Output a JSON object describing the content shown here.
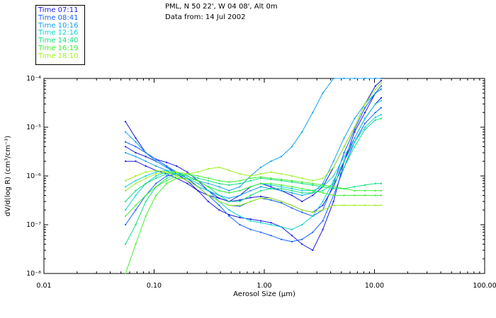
{
  "header": {
    "location": "PML, N 50 22', W 04 08', Alt 0m",
    "date": "Data from: 14 Jul 2002"
  },
  "legend": [
    {
      "label": "Time 07:11",
      "color": "#1a1ae0"
    },
    {
      "label": "Time 08:41",
      "color": "#1560ff"
    },
    {
      "label": "Time 10:16",
      "color": "#12a0f0"
    },
    {
      "label": "Time 12:16",
      "color": "#10d2d2"
    },
    {
      "label": "Time 14:40",
      "color": "#10e080"
    },
    {
      "label": "Time 16:19",
      "color": "#40f030"
    },
    {
      "label": "Time 18:10",
      "color": "#a0f020"
    }
  ],
  "chart_data": {
    "type": "line",
    "xscale": "log",
    "yscale": "log",
    "xlim": [
      0.01,
      100
    ],
    "ylim": [
      1e-08,
      0.0001
    ],
    "xlabel": "Aerosol Size (μm)",
    "ylabel": "dV/d(log R) (cm³/cm⁻³)",
    "xticks": [
      "0.01",
      "0.10",
      "1.00",
      "10.00",
      "100.00"
    ],
    "yticks": [
      "10⁻⁸",
      "10⁻⁷",
      "10⁻⁶",
      "10⁻⁵",
      "10⁻⁴"
    ],
    "x": [
      0.055,
      0.068,
      0.084,
      0.104,
      0.13,
      0.16,
      0.2,
      0.25,
      0.31,
      0.39,
      0.48,
      0.6,
      0.75,
      0.93,
      1.15,
      1.43,
      1.78,
      2.2,
      2.75,
      3.4,
      4.25,
      5.3,
      6.6,
      8.2,
      10.2,
      11.5
    ],
    "series": [
      {
        "name": "Time 07:11",
        "values": [
          [
            1.3e-05,
            6e-06,
            3e-06,
            2.2e-06,
            1.9e-06,
            1.6e-06,
            1.2e-06,
            8e-07,
            5e-07,
            3.5e-07,
            3e-07,
            4e-07,
            6e-07,
            7e-07,
            6e-07,
            5e-07,
            4e-07,
            3e-07,
            4e-07,
            6e-07,
            1.5e-06,
            4e-06,
            1e-05,
            3e-05,
            7e-05,
            9e-05
          ],
          [
            4e-06,
            3e-06,
            2.5e-06,
            2e-06,
            1.5e-06,
            1.1e-06,
            8e-07,
            5e-07,
            3e-07,
            2e-07,
            1.6e-07,
            1.4e-07,
            1.3e-07,
            1.2e-07,
            1.1e-07,
            9e-08,
            6e-08,
            4e-08,
            3e-08,
            8e-08,
            3e-07,
            2e-06,
            8e-06,
            2e-05,
            5e-05,
            6e-05
          ],
          [
            2e-06,
            2e-06,
            1.6e-06,
            1.3e-06,
            1.1e-06,
            9e-07,
            7e-07,
            5e-07,
            4e-07,
            3.5e-07,
            3e-07,
            3.2e-07,
            3.6e-07,
            3.8e-07,
            3.5e-07,
            3e-07,
            2.5e-07,
            2e-07,
            1.8e-07,
            2.5e-07,
            6e-07,
            2e-06,
            6e-06,
            1.5e-05,
            3e-05,
            4e-05
          ]
        ]
      },
      {
        "name": "Time 08:41",
        "values": [
          [
            5e-06,
            4e-06,
            3e-06,
            2.2e-06,
            1.6e-06,
            1.2e-06,
            9e-07,
            6e-07,
            4e-07,
            3e-07,
            2.5e-07,
            2.4e-07,
            3e-07,
            3.5e-07,
            3.2e-07,
            2.8e-07,
            2.2e-07,
            1.8e-07,
            1.5e-07,
            2e-07,
            7e-07,
            3e-06,
            9e-06,
            2.5e-05,
            5e-05,
            7e-05
          ],
          [
            1e-07,
            2e-07,
            4e-07,
            7e-07,
            1e-06,
            1.1e-06,
            9e-07,
            6e-07,
            4e-07,
            2.5e-07,
            1.5e-07,
            1e-07,
            8e-08,
            7e-08,
            6e-08,
            5e-08,
            4.5e-08,
            5e-08,
            7e-08,
            1.2e-07,
            4e-07,
            1.5e-06,
            5e-06,
            1.2e-05,
            2e-05,
            2.5e-05
          ]
        ]
      },
      {
        "name": "Time 10:16",
        "values": [
          [
            3e-06,
            2.5e-06,
            2e-06,
            1.6e-06,
            1.3e-06,
            1e-06,
            8e-07,
            6e-07,
            5e-07,
            4e-07,
            3.5e-07,
            4e-07,
            5e-07,
            6e-07,
            5.5e-07,
            5e-07,
            4.5e-07,
            4e-07,
            4.5e-07,
            7e-07,
            2e-06,
            6e-06,
            1.5e-05,
            3e-05,
            5e-05,
            6e-05
          ],
          [
            8e-06,
            5e-06,
            3e-06,
            2e-06,
            1.5e-06,
            1.2e-06,
            1e-06,
            8e-07,
            7e-07,
            6e-07,
            5e-07,
            6e-07,
            1e-06,
            1.5e-06,
            2e-06,
            2.5e-06,
            4e-06,
            8e-06,
            2e-05,
            5e-05,
            0.0001,
            0.0001,
            0.0001,
            0.0001,
            0.0001,
            0.0001
          ]
        ]
      },
      {
        "name": "Time 12:16",
        "values": [
          [
            6e-07,
            8e-07,
            1e-06,
            1.2e-06,
            1.3e-06,
            1.2e-06,
            1e-06,
            8e-07,
            6e-07,
            5e-07,
            4.5e-07,
            5e-07,
            6e-07,
            7e-07,
            6.5e-07,
            6e-07,
            5.5e-07,
            5e-07,
            5e-07,
            6e-07,
            1e-06,
            2.5e-06,
            6e-06,
            1.5e-05,
            3e-05,
            3.5e-05
          ],
          [
            2e-07,
            4e-07,
            7e-07,
            1e-06,
            1.2e-06,
            1.1e-06,
            9e-07,
            7e-07,
            5e-07,
            3e-07,
            2e-07,
            1.5e-07,
            1.2e-07,
            1.1e-07,
            1e-07,
            9e-08,
            8e-08,
            1e-07,
            1.5e-07,
            3e-07,
            8e-07,
            2e-06,
            5e-06,
            1e-05,
            1.6e-05,
            1.8e-05
          ]
        ]
      },
      {
        "name": "Time 14:40",
        "values": [
          [
            3e-07,
            5e-07,
            7e-07,
            9e-07,
            1.1e-06,
            1.2e-06,
            1.1e-06,
            9e-07,
            8e-07,
            7e-07,
            6.5e-07,
            7e-07,
            8e-07,
            9e-07,
            8.5e-07,
            8e-07,
            7.5e-07,
            7e-07,
            6.5e-07,
            6e-07,
            5.5e-07,
            5.5e-07,
            6e-07,
            6.5e-07,
            7e-07,
            7e-07
          ],
          [
            4e-08,
            1e-07,
            3e-07,
            6e-07,
            9e-07,
            1.1e-06,
            1e-06,
            8e-07,
            6e-07,
            4e-07,
            3e-07,
            3e-07,
            4e-07,
            5e-07,
            5.5e-07,
            5.5e-07,
            5e-07,
            4.5e-07,
            4.5e-07,
            5e-07,
            7e-07,
            1.5e-06,
            4e-06,
            9e-06,
            1.4e-05,
            1.5e-05
          ]
        ]
      },
      {
        "name": "Time 16:19",
        "values": [
          [
            1.5e-07,
            2.5e-07,
            4e-07,
            6e-07,
            8e-07,
            1e-06,
            1.1e-06,
            1e-06,
            9e-07,
            8e-07,
            7.5e-07,
            8e-07,
            9e-07,
            9.5e-07,
            9e-07,
            8.5e-07,
            8e-07,
            7.5e-07,
            7e-07,
            6.5e-07,
            6e-07,
            5.5e-07,
            5e-07,
            5e-07,
            5e-07,
            5e-07
          ],
          [
            1e-08,
            4e-08,
            1.5e-07,
            4e-07,
            7e-07,
            9e-07,
            9e-07,
            8e-07,
            6e-07,
            5e-07,
            4.5e-07,
            5e-07,
            6e-07,
            7e-07,
            7e-07,
            6.5e-07,
            6e-07,
            5.5e-07,
            5e-07,
            4.5e-07,
            4e-07,
            4e-07,
            4e-07,
            4e-07,
            4e-07,
            4e-07
          ]
        ]
      },
      {
        "name": "Time 18:10",
        "values": [
          [
            5e-07,
            7e-07,
            9e-07,
            1.1e-06,
            1.2e-06,
            1.2e-06,
            1.1e-06,
            1.2e-06,
            1.4e-06,
            1.5e-06,
            1.3e-06,
            1.1e-06,
            1e-06,
            1.1e-06,
            1.2e-06,
            1.1e-06,
            1e-06,
            9e-07,
            8e-07,
            9e-07,
            1.5e-06,
            4e-06,
            1e-05,
            3e-05,
            6e-05,
            8e-05
          ],
          [
            8e-07,
            1e-06,
            1.2e-06,
            1.3e-06,
            1.2e-06,
            1e-06,
            8e-07,
            6e-07,
            4e-07,
            3e-07,
            2.5e-07,
            2.5e-07,
            3e-07,
            3.5e-07,
            3.5e-07,
            3e-07,
            2.5e-07,
            2e-07,
            1.8e-07,
            2e-07,
            2.5e-07,
            2.5e-07,
            2.5e-07,
            2.5e-07,
            2.5e-07,
            2.5e-07
          ]
        ]
      }
    ]
  }
}
